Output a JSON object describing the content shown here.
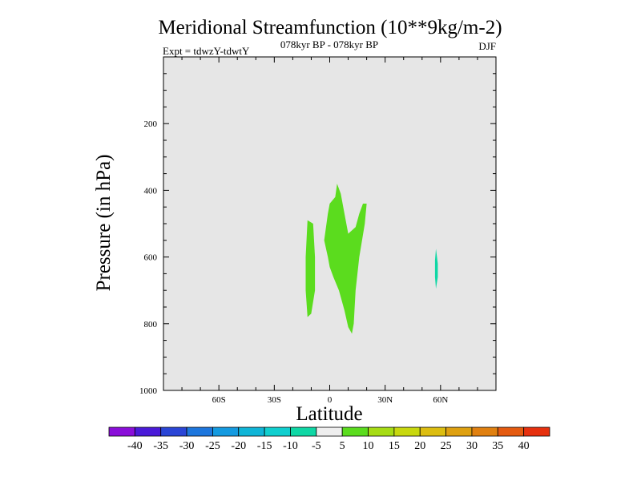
{
  "chart_data": {
    "type": "contour",
    "title": "Meridional Streamfunction (10**9kg/m-2)",
    "subtitle_left": "Expt = tdwzY-tdwtY",
    "subtitle_center": "078kyr BP - 078kyr BP",
    "subtitle_right": "DJF",
    "xlabel": "Latitude",
    "ylabel": "Pressure (in hPa)",
    "xlim": [
      -90,
      90
    ],
    "ylim": [
      1000,
      0
    ],
    "y_inverted": true,
    "x_ticks": [
      {
        "value": -60,
        "label": "60S"
      },
      {
        "value": -30,
        "label": "30S"
      },
      {
        "value": 0,
        "label": "0"
      },
      {
        "value": 30,
        "label": "30N"
      },
      {
        "value": 60,
        "label": "60N"
      }
    ],
    "y_ticks": [
      {
        "value": 200,
        "label": "200"
      },
      {
        "value": 400,
        "label": "400"
      },
      {
        "value": 600,
        "label": "600"
      },
      {
        "value": 800,
        "label": "800"
      },
      {
        "value": 1000,
        "label": "1000"
      }
    ],
    "background_color": "#e6e6e6",
    "colorbar": {
      "labels": [
        "-40",
        "-35",
        "-30",
        "-25",
        "-20",
        "-15",
        "-10",
        "-5",
        "5",
        "10",
        "15",
        "20",
        "25",
        "30",
        "35",
        "40"
      ],
      "colors": [
        "#8a0ed9",
        "#4a1ad8",
        "#2a45d6",
        "#1d76dd",
        "#149ae0",
        "#0fb5d7",
        "#10cfcf",
        "#0fd7a5",
        "#eeeeee",
        "#5bdc1e",
        "#a6dc14",
        "#c8d80e",
        "#dcbd10",
        "#dea010",
        "#e08010",
        "#e45a10",
        "#e6300e"
      ]
    },
    "regions": [
      {
        "name": "positive-5-10-west",
        "level": "5 to 10",
        "color": "#5bdc1e",
        "polygon": [
          [
            -12,
            490
          ],
          [
            -9,
            500
          ],
          [
            -8,
            600
          ],
          [
            -8,
            700
          ],
          [
            -10,
            770
          ],
          [
            -12,
            780
          ],
          [
            -13,
            700
          ],
          [
            -13,
            600
          ]
        ]
      },
      {
        "name": "positive-5-10-center",
        "level": "5 to 10",
        "color": "#5bdc1e",
        "polygon": [
          [
            -3,
            550
          ],
          [
            -1,
            470
          ],
          [
            0,
            440
          ],
          [
            3,
            420
          ],
          [
            4,
            380
          ],
          [
            6,
            410
          ],
          [
            8,
            470
          ],
          [
            10,
            530
          ],
          [
            14,
            510
          ],
          [
            16,
            470
          ],
          [
            18,
            440
          ],
          [
            20,
            440
          ],
          [
            19,
            500
          ],
          [
            16,
            600
          ],
          [
            14,
            700
          ],
          [
            13,
            800
          ],
          [
            12,
            830
          ],
          [
            10,
            810
          ],
          [
            8,
            760
          ],
          [
            5,
            700
          ],
          [
            2,
            660
          ],
          [
            0,
            630
          ],
          [
            -1,
            600
          ]
        ]
      },
      {
        "name": "negative-10-5-east",
        "level": "-10 to -5",
        "color": "#0fd7a5",
        "polygon": [
          [
            57.5,
            575
          ],
          [
            58.5,
            620
          ],
          [
            58.5,
            660
          ],
          [
            57.5,
            695
          ],
          [
            57,
            660
          ],
          [
            57,
            610
          ]
        ]
      }
    ]
  }
}
